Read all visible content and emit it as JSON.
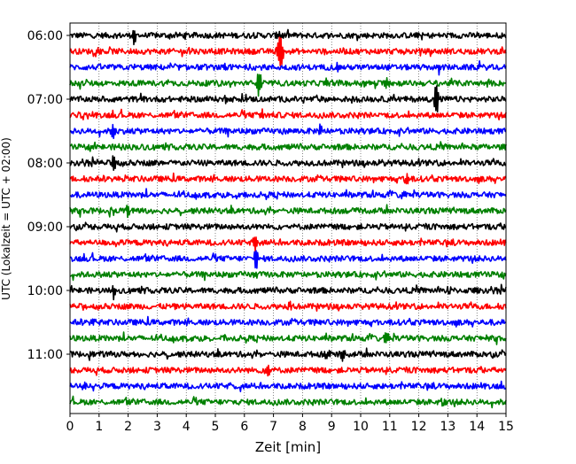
{
  "chart_data": {
    "type": "line",
    "chart_kind": "helicorder",
    "xlabel": "Zeit  [min]",
    "ylabel": "UTC (Lokalzeit = UTC + 02:00)",
    "xlim": [
      0,
      15
    ],
    "x_ticks": [
      "0",
      "1",
      "2",
      "3",
      "4",
      "5",
      "6",
      "7",
      "8",
      "9",
      "10",
      "11",
      "12",
      "13",
      "14",
      "15"
    ],
    "y_tick_labels": [
      "06:00",
      "07:00",
      "08:00",
      "09:00",
      "10:00",
      "11:00"
    ],
    "row_times": [
      "06:00",
      "06:15",
      "06:30",
      "06:45",
      "07:00",
      "07:15",
      "07:30",
      "07:45",
      "08:00",
      "08:15",
      "08:30",
      "08:45",
      "09:00",
      "09:15",
      "09:30",
      "09:45",
      "10:00",
      "10:15",
      "10:30",
      "10:45",
      "11:00",
      "11:15",
      "11:30",
      "11:45"
    ],
    "trace_colors": [
      "#000000",
      "#ff0000",
      "#0000ff",
      "#008000"
    ],
    "vertical_grid": "dotted every 1 min",
    "spikes": [
      {
        "row": 0,
        "t": 2.2,
        "amp": 1.3
      },
      {
        "row": 0,
        "t": 7.2,
        "amp": 0.6
      },
      {
        "row": 1,
        "t": 7.2,
        "amp": 2.6
      },
      {
        "row": 1,
        "t": 7.3,
        "amp": 1.2
      },
      {
        "row": 1,
        "t": 4.1,
        "amp": 0.5
      },
      {
        "row": 2,
        "t": 5.3,
        "amp": 0.8
      },
      {
        "row": 2,
        "t": 12.7,
        "amp": 1.0
      },
      {
        "row": 3,
        "t": 6.5,
        "amp": 2.3
      },
      {
        "row": 3,
        "t": 10.9,
        "amp": 0.6
      },
      {
        "row": 4,
        "t": 5.4,
        "amp": 0.6
      },
      {
        "row": 4,
        "t": 12.6,
        "amp": 2.6
      },
      {
        "row": 5,
        "t": 6.6,
        "amp": 0.7
      },
      {
        "row": 5,
        "t": 10.6,
        "amp": 0.5
      },
      {
        "row": 6,
        "t": 8.6,
        "amp": 1.0
      },
      {
        "row": 6,
        "t": 1.5,
        "amp": 1.1
      },
      {
        "row": 7,
        "t": 1.7,
        "amp": 0.6
      },
      {
        "row": 8,
        "t": 1.5,
        "amp": 1.5
      },
      {
        "row": 8,
        "t": 3.3,
        "amp": 0.4
      },
      {
        "row": 8,
        "t": 10.7,
        "amp": 0.4
      },
      {
        "row": 9,
        "t": 11.6,
        "amp": 0.8
      },
      {
        "row": 10,
        "t": 11.5,
        "amp": 0.7
      },
      {
        "row": 10,
        "t": 5.8,
        "amp": 0.4
      },
      {
        "row": 11,
        "t": 2.0,
        "amp": 0.8
      },
      {
        "row": 11,
        "t": 1.5,
        "amp": 0.5
      },
      {
        "row": 12,
        "t": 6.4,
        "amp": 0.5
      },
      {
        "row": 13,
        "t": 6.4,
        "amp": 1.5
      },
      {
        "row": 14,
        "t": 6.4,
        "amp": 1.6
      },
      {
        "row": 15,
        "t": 6.4,
        "amp": 0.8
      },
      {
        "row": 16,
        "t": 1.5,
        "amp": 0.7
      },
      {
        "row": 16,
        "t": 13.0,
        "amp": 0.3
      },
      {
        "row": 17,
        "t": 7.6,
        "amp": 0.6
      },
      {
        "row": 18,
        "t": 0.8,
        "amp": 0.3
      },
      {
        "row": 19,
        "t": 10.9,
        "amp": 0.9
      },
      {
        "row": 20,
        "t": 9.4,
        "amp": 1.0
      },
      {
        "row": 20,
        "t": 8.8,
        "amp": 0.4
      },
      {
        "row": 21,
        "t": 6.8,
        "amp": 1.0
      },
      {
        "row": 22,
        "t": 0.5,
        "amp": 0.6
      },
      {
        "row": 23,
        "t": 12.8,
        "amp": 0.3
      }
    ]
  }
}
